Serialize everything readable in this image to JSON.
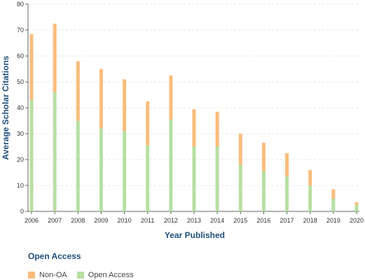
{
  "chart_data": {
    "type": "bar",
    "stacked": true,
    "categories": [
      "2006",
      "2007",
      "2008",
      "2009",
      "2010",
      "2011",
      "2012",
      "2013",
      "2014",
      "2015",
      "2016",
      "2017",
      "2018",
      "2019",
      "2020"
    ],
    "series": [
      {
        "name": "Open Access",
        "color": "#b7dfa3",
        "values": [
          43,
          46,
          35,
          32,
          31,
          25.5,
          35.5,
          25,
          25,
          18,
          15.5,
          13.5,
          10,
          5,
          2.5
        ]
      },
      {
        "name": "Non-OA",
        "color": "#fbbd7b",
        "values": [
          25.5,
          26.5,
          23,
          23,
          20,
          17,
          17,
          14.5,
          13.5,
          12,
          11,
          9,
          6,
          3.5,
          1
        ]
      }
    ],
    "xlabel": "Year Published",
    "ylabel": "Average Scholar Citations",
    "ylim": [
      0,
      80
    ],
    "yticks": [
      "0",
      "10",
      "20",
      "30",
      "40",
      "50",
      "60",
      "70",
      "80"
    ],
    "grid": true,
    "legend": {
      "title": "Open Access",
      "placement": "bottom-left",
      "items": [
        "Non-OA",
        "Open Access"
      ]
    }
  }
}
